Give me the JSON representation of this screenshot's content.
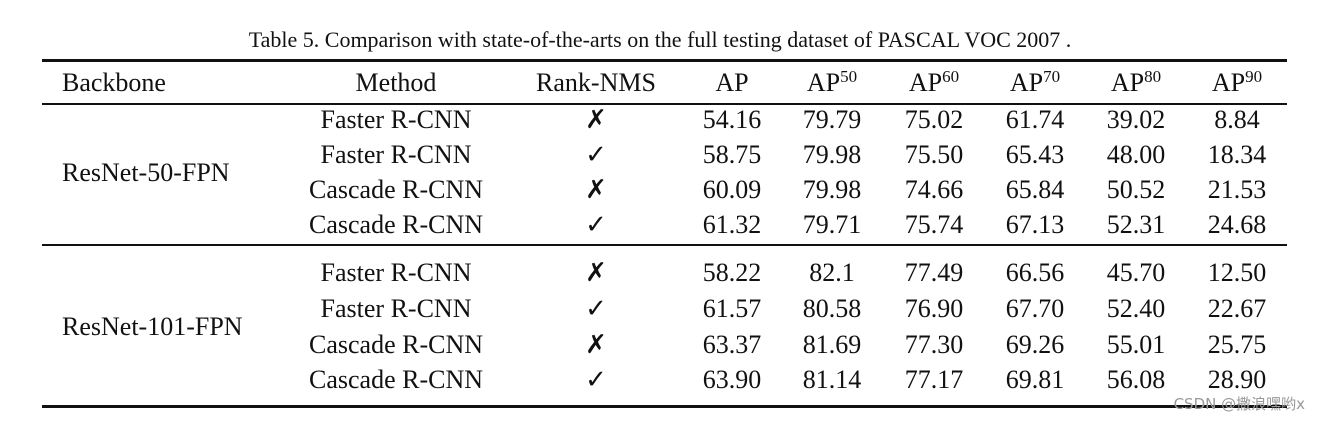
{
  "caption": "Table 5. Comparison with state-of-the-arts on the full testing dataset of PASCAL VOC 2007 .",
  "header": [
    {
      "text": "Backbone"
    },
    {
      "text": "Method"
    },
    {
      "text": "Rank-NMS"
    },
    {
      "text": "AP"
    },
    {
      "text": "AP",
      "sup": "50"
    },
    {
      "text": "AP",
      "sup": "60"
    },
    {
      "text": "AP",
      "sup": "70"
    },
    {
      "text": "AP",
      "sup": "80"
    },
    {
      "text": "AP",
      "sup": "90"
    }
  ],
  "groups": [
    {
      "backbone": "ResNet-50-FPN",
      "rows": [
        [
          "Faster R-CNN",
          "✗",
          "54.16",
          "79.79",
          "75.02",
          "61.74",
          "39.02",
          "8.84"
        ],
        [
          "Faster R-CNN",
          "✓",
          "58.75",
          "79.98",
          "75.50",
          "65.43",
          "48.00",
          "18.34"
        ],
        [
          "Cascade R-CNN",
          "✗",
          "60.09",
          "79.98",
          "74.66",
          "65.84",
          "50.52",
          "21.53"
        ],
        [
          "Cascade R-CNN",
          "✓",
          "61.32",
          "79.71",
          "75.74",
          "67.13",
          "52.31",
          "24.68"
        ]
      ]
    },
    {
      "backbone": "ResNet-101-FPN",
      "rows": [
        [
          "Faster R-CNN",
          "✗",
          "58.22",
          "82.1",
          "77.49",
          "66.56",
          "45.70",
          "12.50"
        ],
        [
          "Faster R-CNN",
          "✓",
          "61.57",
          "80.58",
          "76.90",
          "67.70",
          "52.40",
          "22.67"
        ],
        [
          "Cascade R-CNN",
          "✗",
          "63.37",
          "81.69",
          "77.30",
          "69.26",
          "55.01",
          "25.75"
        ],
        [
          "Cascade R-CNN",
          "✓",
          "63.90",
          "81.14",
          "77.17",
          "69.81",
          "56.08",
          "28.90"
        ]
      ]
    }
  ],
  "watermark": "CSDN @撒浪嘿哟x"
}
